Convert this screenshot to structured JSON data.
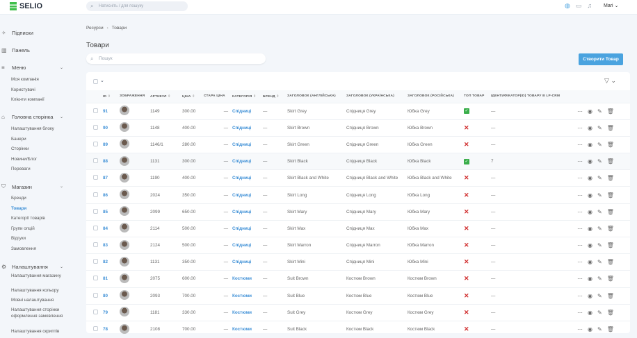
{
  "topbar": {
    "brand": "SELIO",
    "search_placeholder": "Натисніть / для пошуку",
    "user": "Mari"
  },
  "sidebar": {
    "sections": [
      {
        "label": "Підписки",
        "icon": "sparkle-icon",
        "items": []
      },
      {
        "label": "Панель",
        "icon": "chart-icon",
        "items": []
      },
      {
        "label": "Меню",
        "icon": "menu-icon",
        "items": [
          "Моя компанія",
          "Користувачі",
          "Клієнти компанії"
        ]
      },
      {
        "label": "Головна сторінка",
        "icon": "home-icon",
        "items": [
          "Налаштування блоку",
          "Банери",
          "Сторінки",
          "Новини/Блог",
          "Переваги"
        ]
      },
      {
        "label": "Магазин",
        "icon": "bag-icon",
        "items": [
          "Бренди",
          "Товари",
          "Категорії товарів",
          "Групи опцій",
          "Відгуки",
          "Замовлення"
        ]
      },
      {
        "label": "Налаштування",
        "icon": "gear-icon",
        "items": [
          "Налаштування магазину",
          "Налаштування кольору",
          "Мовні налаштування",
          "Налаштування сторінки оформлення замовлення",
          "Налаштування скриптів"
        ]
      }
    ],
    "active": "Товари"
  },
  "breadcrumb": [
    "Ресурси",
    "Товари"
  ],
  "page_title": "Товари",
  "search_placeholder": "Пошук",
  "create_button": "Створити Товар",
  "table": {
    "columns": [
      "ID",
      "ЗОБРАЖЕННЯ",
      "АРТИКУЛ",
      "ЦІНА",
      "СТАРА ЦІНА",
      "КАТЕГОРІЯ",
      "БРЕНД",
      "ЗАГОЛОВОК (АНГЛІЙСЬКА)",
      "ЗАГОЛОВОК (УКРАЇНСЬКА)",
      "ЗАГОЛОВОК (РОСІЙСЬКА)",
      "ТОП ТОВАР",
      "ІДЕНТИФІКАТОР(ID) ТОВАРУ В LP-CRM"
    ],
    "rows": [
      [
        "91",
        "1149",
        "300.00",
        "—",
        "Спідниці",
        "—",
        "Skirt Grey",
        "Спідниця Grey",
        "Юбка Grey",
        true,
        "—"
      ],
      [
        "90",
        "1148",
        "400.00",
        "—",
        "Спідниці",
        "—",
        "Skirt Brown",
        "Спідниця Brown",
        "Юбка Brown",
        false,
        "—"
      ],
      [
        "89",
        "1146/1",
        "280.00",
        "—",
        "Спідниці",
        "—",
        "Skirt Green",
        "Спідниця Green",
        "Юбка Green",
        false,
        "—"
      ],
      [
        "88",
        "1131",
        "300.00",
        "—",
        "Спідниці",
        "—",
        "Skirt Black",
        "Спідниця Black",
        "Юбка Black",
        true,
        "7"
      ],
      [
        "87",
        "1190",
        "400.00",
        "—",
        "Спідниці",
        "—",
        "Skirt Black and White",
        "Спідниця Black and White",
        "Юбка Black and White",
        false,
        "—"
      ],
      [
        "86",
        "2024",
        "350.00",
        "—",
        "Спідниці",
        "—",
        "Skirt Long",
        "Спідниця Long",
        "Юбка Long",
        false,
        "—"
      ],
      [
        "85",
        "2099",
        "650.00",
        "—",
        "Спідниці",
        "—",
        "Skirt Mary",
        "Спідниця Mary",
        "Юбка Mary",
        false,
        "—"
      ],
      [
        "84",
        "2114",
        "500.00",
        "—",
        "Спідниці",
        "—",
        "Skirt Max",
        "Спідниця Max",
        "Юбка Max",
        false,
        "—"
      ],
      [
        "83",
        "2124",
        "500.00",
        "—",
        "Спідниці",
        "—",
        "Skirt Marron",
        "Спідниця Marron",
        "Юбка Marron",
        false,
        "—"
      ],
      [
        "82",
        "1131",
        "350.00",
        "—",
        "Спідниці",
        "—",
        "Skirt Mini",
        "Спідниця Mini",
        "Юбка Mini",
        false,
        "—"
      ],
      [
        "81",
        "2075",
        "600.00",
        "—",
        "Костюми",
        "—",
        "Suit Brown",
        "Костюм Brown",
        "Костюм Brown",
        false,
        "—"
      ],
      [
        "80",
        "2093",
        "700.00",
        "—",
        "Костюми",
        "—",
        "Suit Blue",
        "Костюм Blue",
        "Костюм Blue",
        false,
        "—"
      ],
      [
        "79",
        "1181",
        "330.00",
        "—",
        "Костюми",
        "—",
        "Suit Grey",
        "Костюм Grey",
        "Костюм Grey",
        false,
        "—"
      ],
      [
        "78",
        "2108",
        "700.00",
        "—",
        "Костюми",
        "—",
        "Suit Black",
        "Костюм Black",
        "Костюм Black",
        false,
        "—"
      ]
    ]
  },
  "colors": {
    "accent": "#4aa3df",
    "link": "#3d8fd6",
    "ok": "#3aae4a",
    "no": "#d02b2b",
    "bg": "#f3f6fa"
  }
}
